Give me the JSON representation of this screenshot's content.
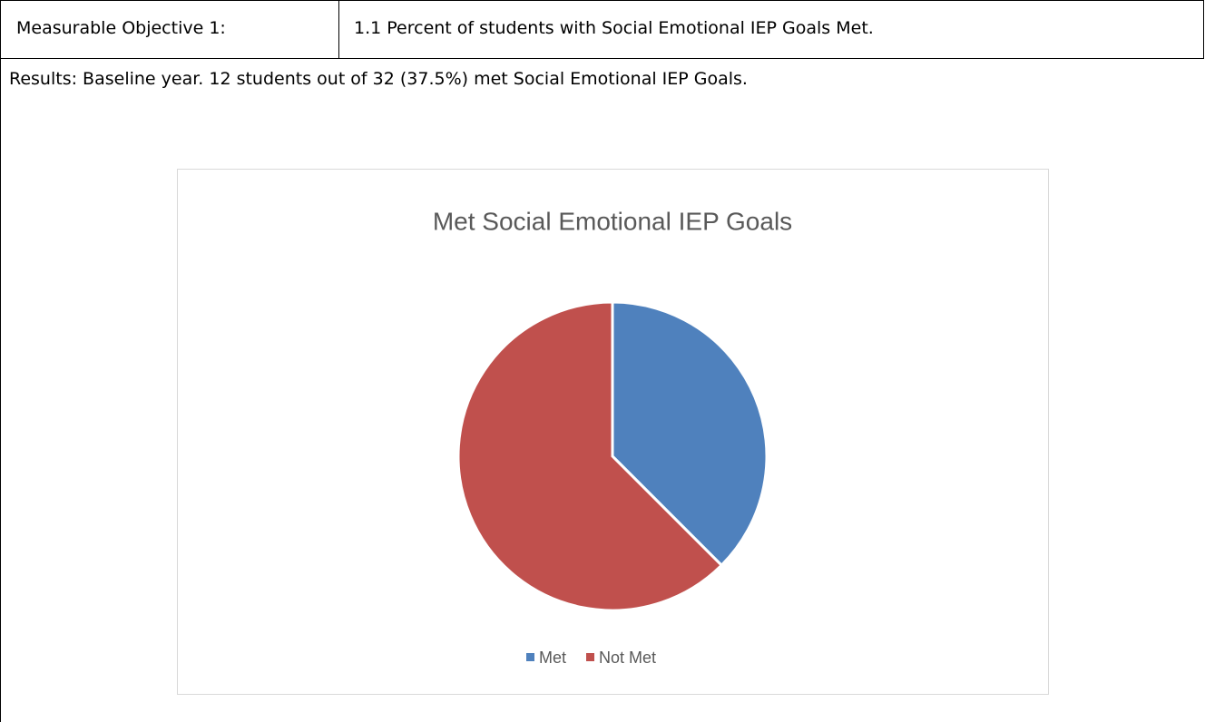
{
  "table": {
    "rows": [
      [
        "Measurable Objective 1:",
        "1.1 Percent of students with Social Emotional IEP Goals Met."
      ],
      [
        "Results: Baseline year. 12 students out of 32 (37.5%) met Social Emotional IEP Goals."
      ]
    ]
  },
  "chart_data": {
    "type": "pie",
    "title": "Met Social Emotional IEP Goals",
    "categories": [
      "Met",
      "Not Met"
    ],
    "values": [
      12,
      20
    ],
    "colors": [
      "#4f81bd",
      "#c0504d"
    ],
    "legend": "bottom"
  }
}
